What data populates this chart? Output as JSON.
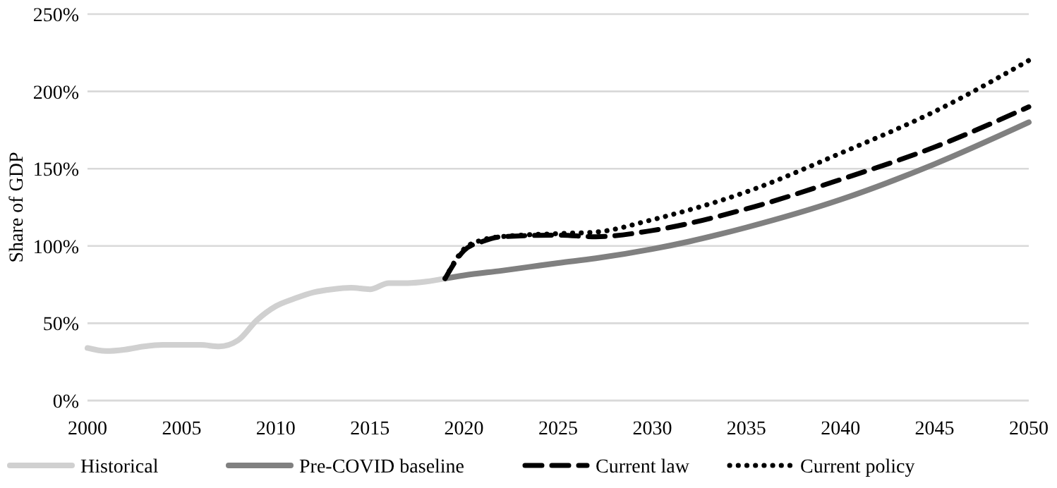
{
  "chart_data": {
    "type": "line",
    "ylabel": "Share of GDP",
    "xlim": [
      2000,
      2050
    ],
    "xticks": [
      2000,
      2005,
      2010,
      2015,
      2020,
      2025,
      2030,
      2035,
      2040,
      2045,
      2050
    ],
    "ylim": [
      0,
      250
    ],
    "yticks": [
      {
        "value": 0,
        "label": "0%"
      },
      {
        "value": 50,
        "label": "50%"
      },
      {
        "value": 100,
        "label": "100%"
      },
      {
        "value": 150,
        "label": "150%"
      },
      {
        "value": 200,
        "label": "200%"
      },
      {
        "value": 250,
        "label": "250%"
      }
    ],
    "grid": "y",
    "legend": "bottom",
    "series": [
      {
        "name": "Historical",
        "color": "#d0d0d0",
        "line_style": "solid",
        "x": [
          2000,
          2001,
          2002,
          2003,
          2004,
          2005,
          2006,
          2007,
          2008,
          2009,
          2010,
          2011,
          2012,
          2013,
          2014,
          2015,
          2016,
          2017,
          2018,
          2019
        ],
        "values": [
          34,
          32,
          33,
          35,
          36,
          36,
          36,
          35,
          39,
          52,
          61,
          66,
          70,
          72,
          73,
          72,
          76,
          76,
          77,
          79
        ]
      },
      {
        "name": "Pre-COVID baseline",
        "color": "#808080",
        "line_style": "solid",
        "x": [
          2019,
          2020,
          2022,
          2025,
          2027,
          2030,
          2032,
          2035,
          2040,
          2045,
          2050
        ],
        "values": [
          79,
          81,
          84,
          89,
          92,
          98,
          103,
          112,
          130,
          153,
          180
        ]
      },
      {
        "name": "Current law",
        "color": "#000000",
        "line_style": "dashed",
        "x": [
          2019,
          2020,
          2021,
          2022,
          2025,
          2027,
          2030,
          2035,
          2040,
          2045,
          2050
        ],
        "values": [
          79,
          97,
          103,
          106,
          107,
          106,
          110,
          124,
          143,
          164,
          190
        ]
      },
      {
        "name": "Current policy",
        "color": "#000000",
        "line_style": "dotted",
        "x": [
          2019,
          2020,
          2021,
          2022,
          2025,
          2027,
          2030,
          2035,
          2040,
          2045,
          2050
        ],
        "values": [
          79,
          98,
          104,
          106,
          108,
          109,
          117,
          135,
          160,
          187,
          220
        ]
      }
    ]
  }
}
